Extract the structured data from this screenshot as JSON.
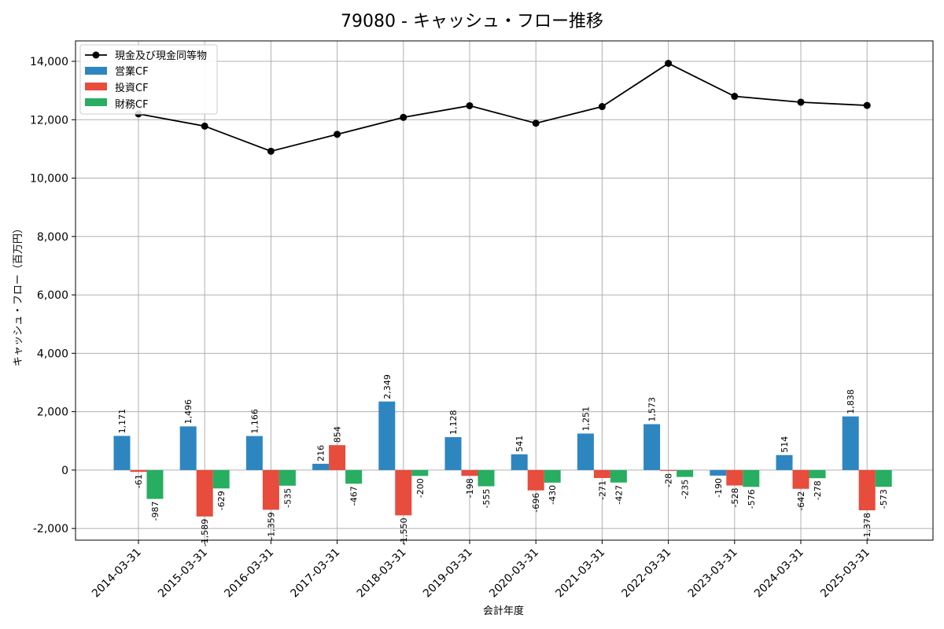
{
  "chart_data": {
    "type": "bar+line",
    "title": "79080 - キャッシュ・フロー推移",
    "xlabel": "会計年度",
    "ylabel": "キャッシュ・フロー（百万円）",
    "ylim": [
      -2400,
      14700
    ],
    "yticks": [
      -2000,
      0,
      2000,
      4000,
      6000,
      8000,
      10000,
      12000,
      14000
    ],
    "ytick_labels": [
      "-2,000",
      "0",
      "2,000",
      "4,000",
      "6,000",
      "8,000",
      "10,000",
      "12,000",
      "14,000"
    ],
    "categories": [
      "2014-03-31",
      "2015-03-31",
      "2016-03-31",
      "2017-03-31",
      "2018-03-31",
      "2019-03-31",
      "2020-03-31",
      "2021-03-31",
      "2022-03-31",
      "2023-03-31",
      "2024-03-31",
      "2025-03-31"
    ],
    "line": {
      "name": "現金及び現金同等物",
      "color": "#000000",
      "values": [
        12200,
        11780,
        10920,
        11500,
        12080,
        12480,
        11880,
        12450,
        13930,
        12800,
        12600,
        12490
      ]
    },
    "series": [
      {
        "name": "営業CF",
        "color": "#2e86c1",
        "values": [
          1171,
          1496,
          1166,
          216,
          2349,
          1128,
          541,
          1251,
          1573,
          -190,
          514,
          1838
        ],
        "labels": [
          "1,171",
          "1,496",
          "1,166",
          "216",
          "2,349",
          "1,128",
          "541",
          "1,251",
          "1,573",
          "-190",
          "514",
          "1,838"
        ]
      },
      {
        "name": "投資CF",
        "color": "#e74c3c",
        "values": [
          -61,
          -1589,
          -1359,
          854,
          -1550,
          -198,
          -696,
          -271,
          -28,
          -528,
          -642,
          -1378
        ],
        "labels": [
          "-61",
          "-1,589",
          "-1,359",
          "854",
          "-1,550",
          "-198",
          "-696",
          "-271",
          "-28",
          "-528",
          "-642",
          "-1,378"
        ]
      },
      {
        "name": "財務CF",
        "color": "#27ae60",
        "values": [
          -987,
          -629,
          -535,
          -467,
          -200,
          -555,
          -430,
          -427,
          -235,
          -576,
          -278,
          -573
        ],
        "labels": [
          "-987",
          "-629",
          "-535",
          "-467",
          "-200",
          "-555",
          "-430",
          "-427",
          "-235",
          "-576",
          "-278",
          "-573"
        ]
      }
    ],
    "legend": "top-left",
    "grid": true
  }
}
